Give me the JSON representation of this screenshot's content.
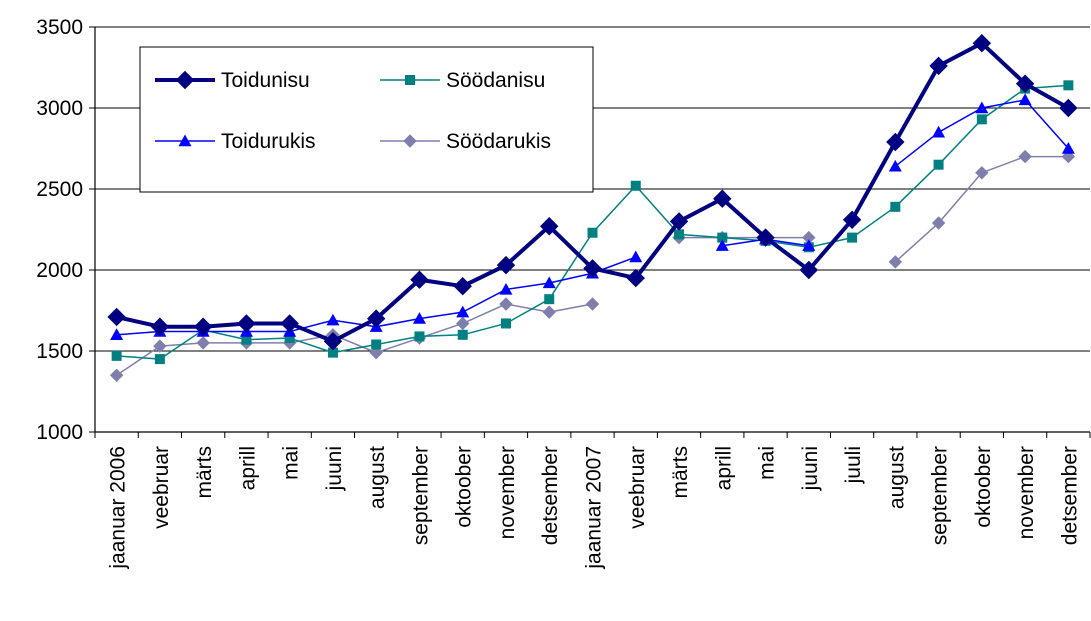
{
  "chart_data": {
    "type": "line",
    "categories": [
      "jaanuar 2006",
      "veebruar",
      "märts",
      "aprill",
      "mai",
      "juuni",
      "august",
      "september",
      "oktoober",
      "november",
      "detsember",
      "jaanuar 2007",
      "veebruar",
      "märts",
      "aprill",
      "mai",
      "juuni",
      "juuli",
      "august",
      "september",
      "oktoober",
      "november",
      "detsember"
    ],
    "ylim": [
      1000,
      3500
    ],
    "yticks": [
      1000,
      1500,
      2000,
      2500,
      3000,
      3500
    ],
    "grid": "horizontal",
    "legend_position": "top-left",
    "series": [
      {
        "name": "Toidunisu",
        "color": "#000080",
        "marker": "diamond",
        "values": [
          1710,
          1650,
          1650,
          1670,
          1670,
          1560,
          1700,
          1940,
          1900,
          2030,
          2270,
          2010,
          1950,
          2300,
          2440,
          2200,
          2000,
          2310,
          2790,
          3260,
          3400,
          3150,
          3000
        ]
      },
      {
        "name": "Söödanisu",
        "color": "#008080",
        "marker": "square",
        "values": [
          1470,
          1450,
          1630,
          1570,
          1580,
          1490,
          1540,
          1590,
          1600,
          1670,
          1820,
          2230,
          2520,
          2220,
          2200,
          2180,
          2140,
          2200,
          2390,
          2650,
          2930,
          3120,
          3140
        ]
      },
      {
        "name": "Toidurukis",
        "color": "#0000ff",
        "marker": "triangle",
        "values": [
          1600,
          1620,
          1620,
          1620,
          1620,
          1690,
          1650,
          1700,
          1740,
          1880,
          1920,
          1980,
          2080,
          null,
          2150,
          2190,
          2150,
          null,
          2640,
          2850,
          3000,
          3050,
          2750
        ]
      },
      {
        "name": "Söödarukis",
        "color": "#7f7fae",
        "marker": "diamond-small",
        "values": [
          1350,
          1530,
          1550,
          1550,
          1550,
          1600,
          1490,
          1580,
          1670,
          1790,
          1740,
          1790,
          null,
          2200,
          2200,
          2200,
          2200,
          null,
          2050,
          2290,
          2600,
          2700,
          2700
        ]
      }
    ],
    "legend_rows": [
      [
        "Toidunisu",
        "Söödanisu"
      ],
      [
        "Toidurukis",
        "Söödarukis"
      ]
    ]
  }
}
